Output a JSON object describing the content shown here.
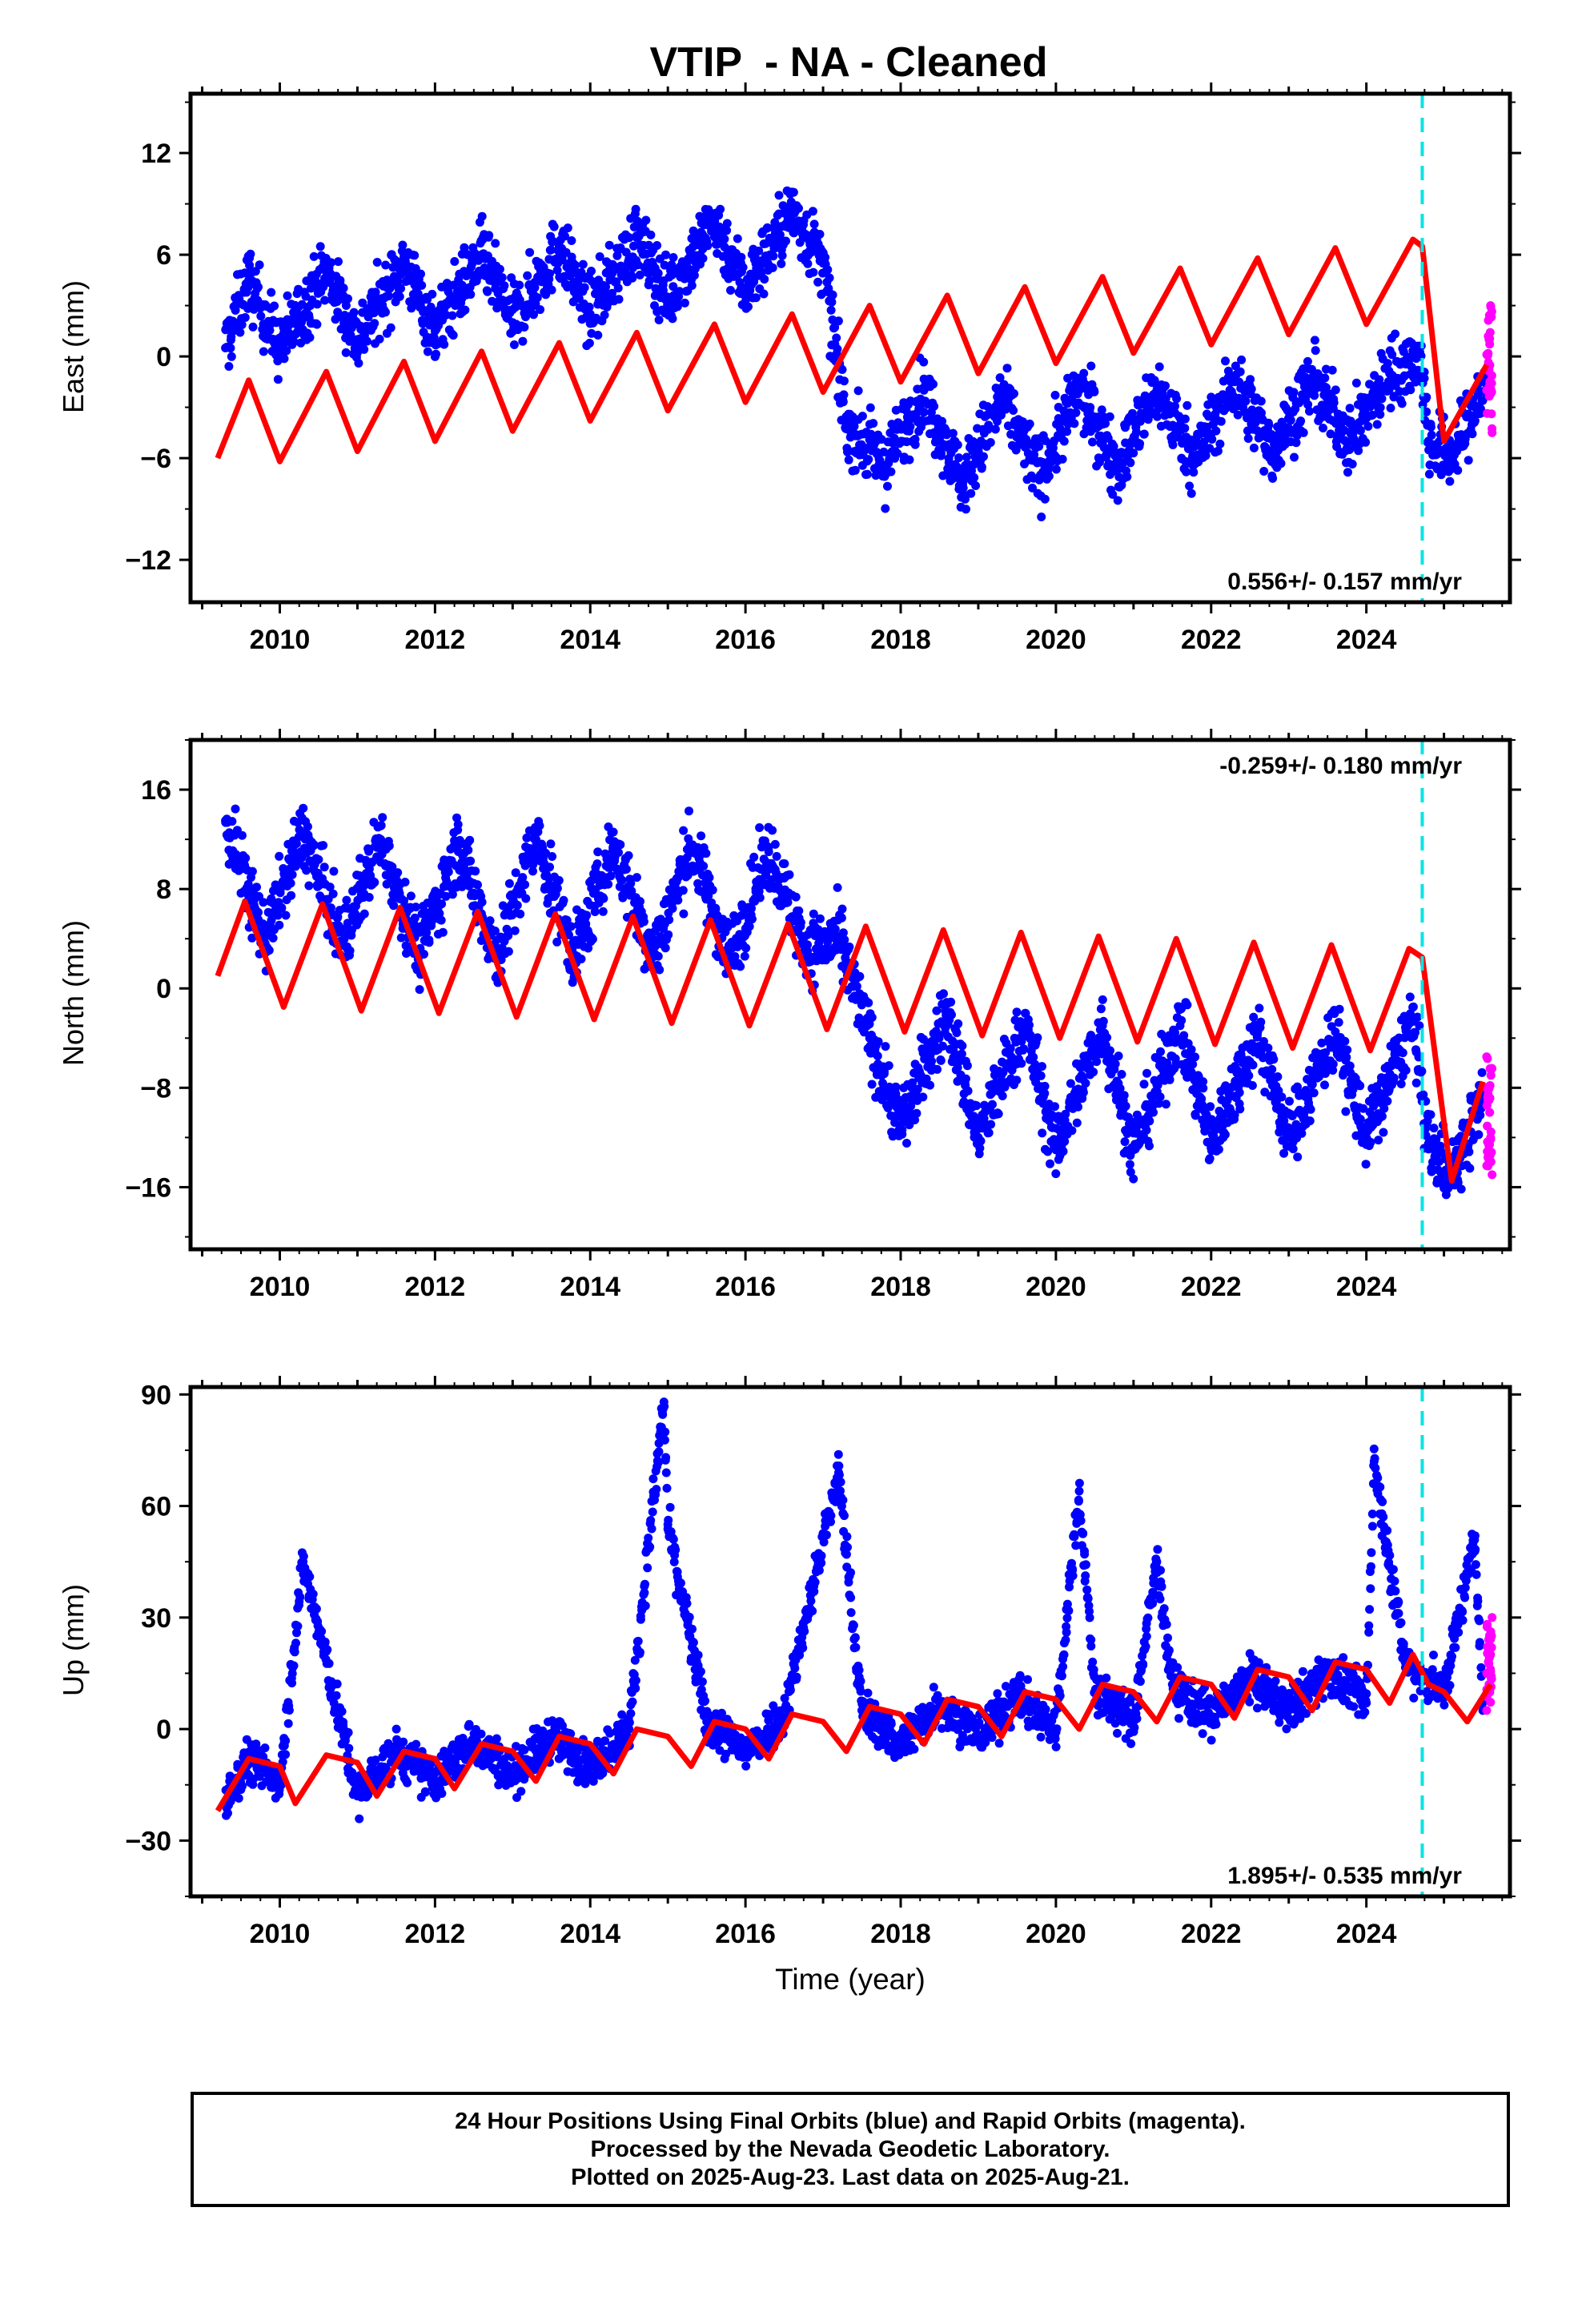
{
  "title": "VTIP  - NA - Cleaned",
  "xlabel": "Time (year)",
  "footer": {
    "line1": "24 Hour Positions Using Final Orbits (blue) and Rapid Orbits (magenta).",
    "line2": "Processed by the Nevada Geodetic Laboratory.",
    "line3": "Plotted on 2025-Aug-23. Last data on 2025-Aug-21."
  },
  "colors": {
    "final_orbits": "#0000ff",
    "rapid_orbits": "#ff00ff",
    "model": "#ff0000",
    "equipment_change": "#00e5e5"
  },
  "chart_data": [
    {
      "type": "scatter",
      "ylabel": "East (mm)",
      "xlim": [
        2008.85,
        2025.85
      ],
      "ylim": [
        -14.5,
        15.5
      ],
      "yticks": [
        -12,
        -6,
        0,
        6,
        12
      ],
      "xticks": [
        2010,
        2012,
        2014,
        2016,
        2018,
        2020,
        2022,
        2024
      ],
      "rate_label": "0.556+/- 0.157 mm/yr",
      "rate_position": "bottom-right",
      "step_line_x": 2024.72,
      "series": [
        {
          "name": "Final Orbits (blue)",
          "x": [
            2009.3,
            2009.6,
            2010.0,
            2010.6,
            2011.0,
            2011.6,
            2012.0,
            2012.6,
            2013.0,
            2013.6,
            2014.0,
            2014.6,
            2015.0,
            2015.6,
            2016.0,
            2016.6,
            2017.0,
            2017.3,
            2017.8,
            2018.3,
            2018.8,
            2019.3,
            2019.8,
            2020.3,
            2020.8,
            2021.3,
            2021.8,
            2022.3,
            2022.8,
            2023.3,
            2023.8,
            2024.3,
            2024.7,
            2024.8,
            2025.1,
            2025.4,
            2025.55
          ],
          "y": [
            0.5,
            4.5,
            0.5,
            5.0,
            1.0,
            5.5,
            1.5,
            6.0,
            2.0,
            6.5,
            2.5,
            7.0,
            3.5,
            8.0,
            4.0,
            8.5,
            5.5,
            -4.0,
            -6.5,
            -2.0,
            -7.5,
            -2.5,
            -7.0,
            -2.0,
            -6.5,
            -2.0,
            -6.0,
            -1.5,
            -5.5,
            -1.5,
            -5.0,
            -1.0,
            0.0,
            -5.0,
            -6.0,
            -3.0,
            -1.5
          ]
        },
        {
          "name": "Rapid Orbits (magenta)",
          "x": [
            2025.55,
            2025.58,
            2025.6,
            2025.62
          ],
          "y": [
            -2.0,
            1.0,
            3.0,
            -4.5
          ]
        }
      ],
      "model": {
        "x": [
          2009.2,
          2009.6,
          2010.0,
          2010.6,
          2011.0,
          2011.6,
          2012.0,
          2012.6,
          2013.0,
          2013.6,
          2014.0,
          2014.6,
          2015.0,
          2015.6,
          2016.0,
          2016.6,
          2017.0,
          2017.6,
          2018.0,
          2018.6,
          2019.0,
          2019.6,
          2020.0,
          2020.6,
          2021.0,
          2021.6,
          2022.0,
          2022.6,
          2023.0,
          2023.6,
          2024.0,
          2024.6,
          2024.72,
          2025.0,
          2025.55
        ],
        "y": [
          -6.0,
          -1.4,
          -6.2,
          -0.9,
          -5.6,
          -0.3,
          -5.0,
          0.3,
          -4.4,
          0.8,
          -3.8,
          1.4,
          -3.2,
          1.9,
          -2.7,
          2.5,
          -2.1,
          3.0,
          -1.5,
          3.6,
          -1.0,
          4.1,
          -0.4,
          4.7,
          0.2,
          5.2,
          0.7,
          5.8,
          1.3,
          6.4,
          1.9,
          6.9,
          6.5,
          -5.0,
          -0.5
        ]
      }
    },
    {
      "type": "scatter",
      "ylabel": "North (mm)",
      "xlim": [
        2008.85,
        2025.85
      ],
      "ylim": [
        -21,
        20
      ],
      "yticks": [
        -16,
        -8,
        0,
        8,
        16
      ],
      "xticks": [
        2010,
        2012,
        2014,
        2016,
        2018,
        2020,
        2022,
        2024
      ],
      "rate_label": "-0.259+/- 0.180 mm/yr",
      "rate_position": "top-right",
      "step_line_x": 2024.72,
      "series": [
        {
          "name": "Final Orbits (blue)",
          "x": [
            2009.3,
            2009.8,
            2010.3,
            2010.8,
            2011.3,
            2011.8,
            2012.3,
            2012.8,
            2013.3,
            2013.8,
            2014.3,
            2014.8,
            2015.3,
            2015.8,
            2016.3,
            2016.8,
            2017.2,
            2017.6,
            2018.0,
            2018.6,
            2019.0,
            2019.6,
            2020.0,
            2020.6,
            2021.0,
            2021.6,
            2022.0,
            2022.6,
            2023.0,
            2023.6,
            2024.0,
            2024.6,
            2024.8,
            2025.1,
            2025.5
          ],
          "y": [
            13.5,
            4.0,
            12.5,
            3.5,
            12.0,
            3.0,
            11.5,
            2.5,
            12.0,
            2.5,
            11.5,
            2.5,
            11.5,
            2.5,
            11.0,
            3.0,
            4.0,
            -4.0,
            -11.0,
            -2.0,
            -12.0,
            -3.0,
            -13.0,
            -3.0,
            -13.0,
            -3.0,
            -12.5,
            -3.5,
            -12.0,
            -3.5,
            -12.0,
            -2.5,
            -12.5,
            -15.0,
            -9.0
          ]
        },
        {
          "name": "Rapid Orbits (magenta)",
          "x": [
            2025.55,
            2025.58,
            2025.6,
            2025.62
          ],
          "y": [
            -5.5,
            -9.0,
            -12.0,
            -15.0
          ]
        }
      ],
      "model": {
        "x": [
          2009.2,
          2009.55,
          2010.05,
          2010.55,
          2011.05,
          2011.55,
          2012.05,
          2012.55,
          2013.05,
          2013.55,
          2014.05,
          2014.55,
          2015.05,
          2015.55,
          2016.05,
          2016.55,
          2017.05,
          2017.55,
          2018.05,
          2018.55,
          2019.05,
          2019.55,
          2020.05,
          2020.55,
          2021.05,
          2021.55,
          2022.05,
          2022.55,
          2023.05,
          2023.55,
          2024.05,
          2024.55,
          2024.72,
          2025.1,
          2025.5
        ],
        "y": [
          1.0,
          7.0,
          -1.5,
          6.8,
          -1.8,
          6.5,
          -2.0,
          6.2,
          -2.3,
          6.0,
          -2.5,
          5.8,
          -2.8,
          5.5,
          -3.0,
          5.2,
          -3.3,
          5.0,
          -3.5,
          4.7,
          -3.8,
          4.5,
          -4.0,
          4.2,
          -4.3,
          4.0,
          -4.5,
          3.7,
          -4.8,
          3.5,
          -5.0,
          3.2,
          2.5,
          -15.5,
          -7.5
        ]
      }
    },
    {
      "type": "scatter",
      "ylabel": "Up (mm)",
      "xlim": [
        2008.85,
        2025.85
      ],
      "ylim": [
        -45,
        92
      ],
      "yticks": [
        -30,
        0,
        30,
        60,
        90
      ],
      "xticks": [
        2010,
        2012,
        2014,
        2016,
        2018,
        2020,
        2022,
        2024
      ],
      "rate_label": "1.895+/- 0.535 mm/yr",
      "rate_position": "bottom-right",
      "step_line_x": 2024.72,
      "series": [
        {
          "name": "Final Orbits (blue)",
          "x": [
            2009.3,
            2009.6,
            2010.0,
            2010.3,
            2011.0,
            2011.5,
            2012.0,
            2012.5,
            2013.0,
            2013.5,
            2014.0,
            2014.5,
            2014.95,
            2015.0,
            2015.5,
            2016.0,
            2016.5,
            2017.2,
            2017.5,
            2018.0,
            2018.5,
            2019.0,
            2019.5,
            2020.0,
            2020.3,
            2020.5,
            2021.0,
            2021.3,
            2021.5,
            2022.0,
            2022.5,
            2023.0,
            2023.5,
            2024.0,
            2024.1,
            2024.5,
            2025.0,
            2025.4,
            2025.5
          ],
          "y": [
            -20.0,
            -8.0,
            -14.0,
            45.0,
            -18.0,
            -6.0,
            -14.0,
            -3.0,
            -12.0,
            -2.0,
            -10.0,
            0.0,
            88.0,
            55.0,
            2.0,
            -6.0,
            4.0,
            69.0,
            5.0,
            -4.0,
            7.0,
            -2.0,
            9.0,
            0.0,
            64.0,
            10.0,
            2.0,
            45.0,
            12.0,
            3.0,
            14.0,
            5.0,
            16.0,
            7.0,
            72.0,
            18.0,
            10.0,
            52.0,
            5.0
          ]
        },
        {
          "name": "Rapid Orbits (magenta)",
          "x": [
            2025.55,
            2025.58,
            2025.6,
            2025.62
          ],
          "y": [
            5.0,
            12.0,
            20.0,
            30.0
          ]
        }
      ],
      "model": {
        "x": [
          2009.2,
          2009.6,
          2010.0,
          2010.2,
          2010.6,
          2011.0,
          2011.25,
          2011.6,
          2012.0,
          2012.25,
          2012.6,
          2013.0,
          2013.3,
          2013.6,
          2014.0,
          2014.3,
          2014.6,
          2015.0,
          2015.3,
          2015.6,
          2016.0,
          2016.3,
          2016.6,
          2017.0,
          2017.3,
          2017.6,
          2018.0,
          2018.3,
          2018.6,
          2019.0,
          2019.3,
          2019.6,
          2020.0,
          2020.3,
          2020.6,
          2021.0,
          2021.3,
          2021.6,
          2022.0,
          2022.3,
          2022.6,
          2023.0,
          2023.3,
          2023.6,
          2024.0,
          2024.3,
          2024.6,
          2024.8,
          2025.0,
          2025.3,
          2025.6
        ],
        "y": [
          -22.0,
          -8.0,
          -10.0,
          -20.0,
          -7.0,
          -9.0,
          -18.0,
          -6.0,
          -8.0,
          -16.0,
          -4.0,
          -6.0,
          -14.0,
          -2.0,
          -4.0,
          -12.0,
          0.0,
          -2.0,
          -10.0,
          2.0,
          0.0,
          -8.0,
          4.0,
          2.0,
          -6.0,
          6.0,
          4.0,
          -4.0,
          8.0,
          6.0,
          -2.0,
          10.0,
          8.0,
          0.0,
          12.0,
          10.0,
          2.0,
          14.0,
          12.0,
          3.0,
          16.0,
          14.0,
          5.0,
          18.0,
          16.0,
          7.0,
          20.0,
          12.0,
          10.0,
          2.0,
          12.0
        ]
      }
    }
  ]
}
